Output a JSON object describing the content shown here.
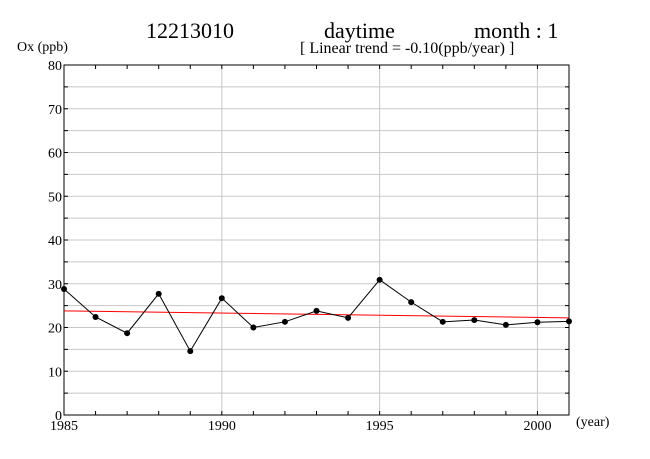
{
  "header": {
    "station": "12213010",
    "period": "daytime",
    "month": "month : 1",
    "trend": "[ Linear trend = -0.10(ppb/year) ]"
  },
  "chart_data": {
    "type": "line",
    "ylabel": "Ox (ppb)",
    "xlabel": "(year)",
    "xlim": [
      1985,
      2001
    ],
    "ylim": [
      0,
      80
    ],
    "grid": true,
    "x_ticks": [
      1985,
      1990,
      1995,
      2000
    ],
    "y_ticks": [
      0,
      10,
      20,
      30,
      40,
      50,
      60,
      70,
      80
    ],
    "series": [
      {
        "color": "#000000",
        "x": [
          1985,
          1986,
          1987,
          1988,
          1989,
          1990,
          1991,
          1992,
          1993,
          1994,
          1995,
          1996,
          1997,
          1998,
          1999,
          2000,
          2001
        ],
        "y": [
          28.8,
          22.4,
          18.7,
          27.7,
          14.6,
          26.7,
          20.0,
          21.3,
          23.8,
          22.2,
          30.9,
          25.8,
          21.3,
          21.7,
          20.6,
          21.2,
          21.4
        ]
      }
    ],
    "trend_line": {
      "color": "#ff0000",
      "x": [
        1985,
        2001
      ],
      "y": [
        23.8,
        22.2
      ]
    }
  }
}
